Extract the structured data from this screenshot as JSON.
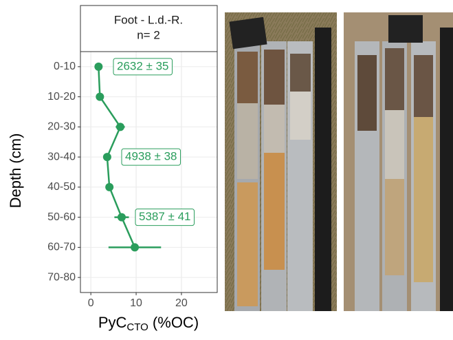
{
  "chart_data": {
    "type": "profile",
    "panel_title": [
      "Foot - L.d.-R.",
      "n= 2"
    ],
    "ylabel": "Depth (cm)",
    "xlabel": {
      "text": "PyC",
      "sub": "CTO",
      "suffix": " (%OC)"
    },
    "categories": [
      "0-10",
      "10-20",
      "20-30",
      "30-40",
      "40-50",
      "50-60",
      "60-70",
      "70-80"
    ],
    "series": [
      {
        "color": "#2a9d5c",
        "values": [
          1.7,
          2.0,
          6.5,
          3.6,
          4.1,
          6.8,
          9.7,
          null
        ],
        "errors": [
          null,
          null,
          1.0,
          null,
          null,
          1.6,
          5.8,
          null
        ]
      }
    ],
    "xlim": [
      -2.3,
      27.9
    ],
    "xticks": [
      0,
      10,
      20
    ],
    "grid": true,
    "annotations": [
      {
        "text": "2632 ± 35",
        "category": 0
      },
      {
        "text": "4938 ± 38",
        "category": 3
      },
      {
        "text": "5387 ± 41",
        "category": 5
      }
    ]
  }
}
